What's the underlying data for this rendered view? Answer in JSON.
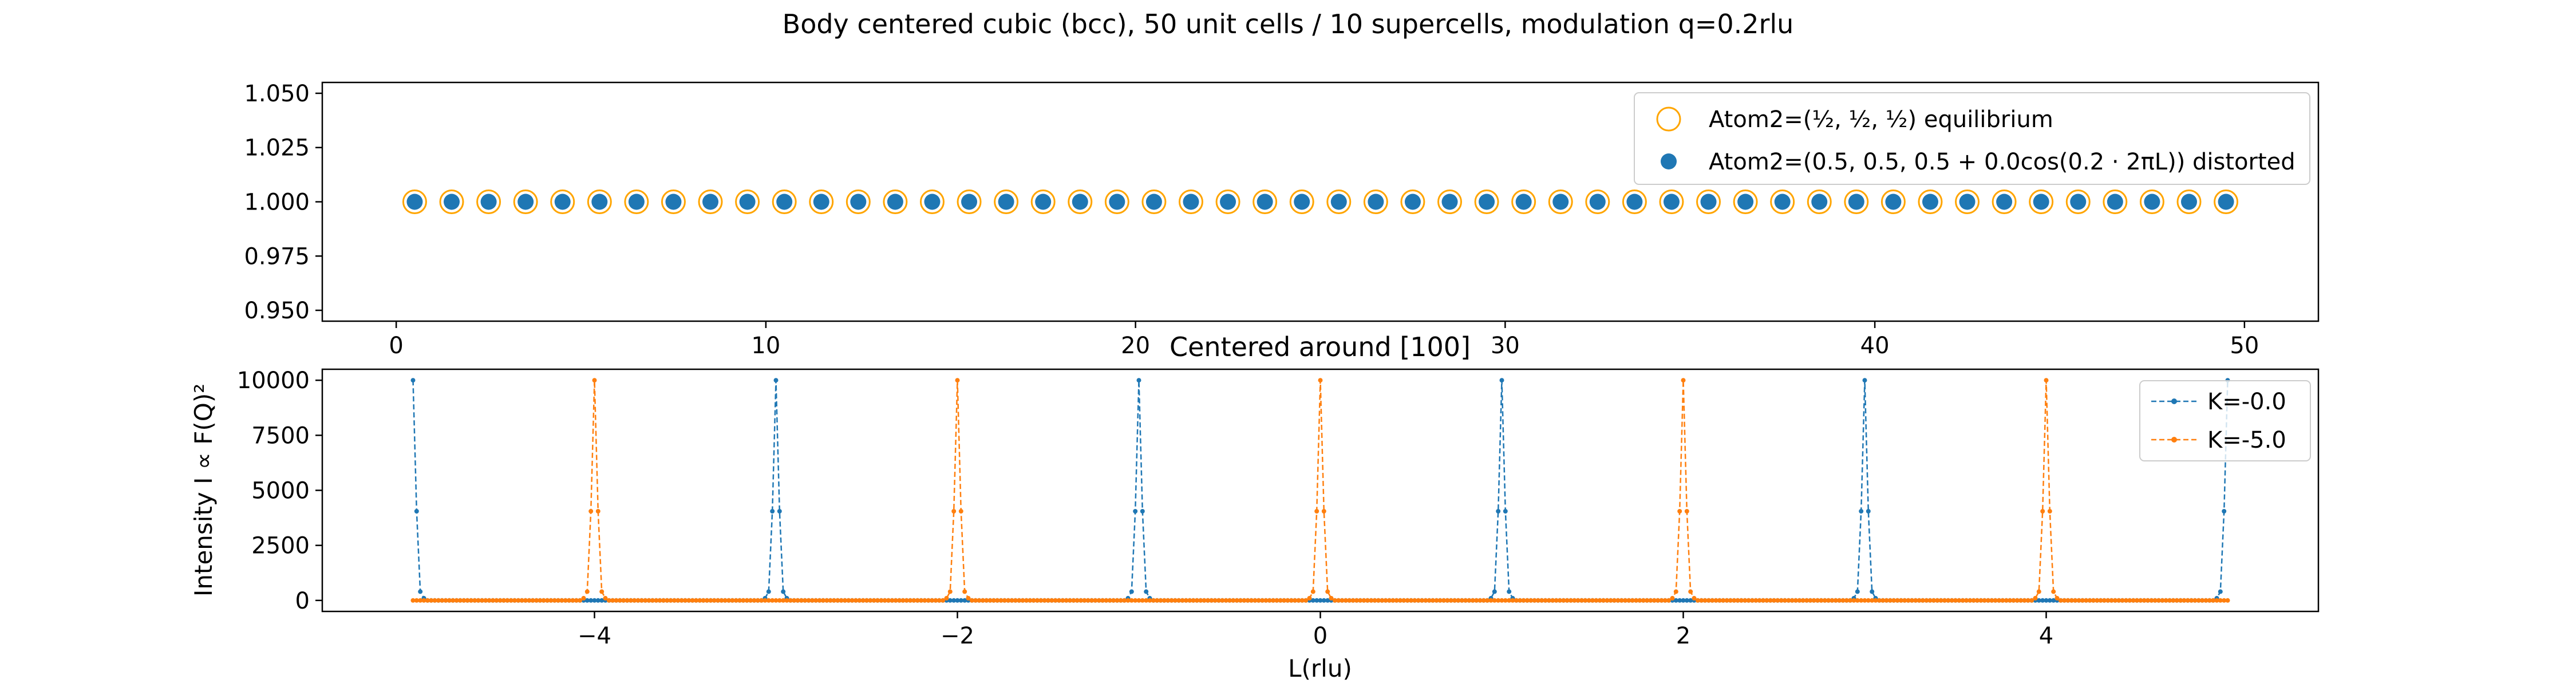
{
  "figure": {
    "suptitle": "Body centered cubic (bcc), 50 unit cells / 10 supercells, modulation q=0.2rlu"
  },
  "colors": {
    "equilibrium_edge": "#ffa500",
    "distorted_fill": "#1f77b4",
    "series_blue": "#1f77b4",
    "series_orange": "#ff7f0e"
  },
  "chart_data": [
    {
      "type": "scatter",
      "title": "",
      "xlabel": "",
      "ylabel": "",
      "xlim": [
        -2,
        52
      ],
      "ylim": [
        0.945,
        1.055
      ],
      "xticks": [
        0,
        10,
        20,
        30,
        40,
        50
      ],
      "yticks": [
        "0.950",
        "0.975",
        "1.000",
        "1.025",
        "1.050"
      ],
      "legend_position": "upper right",
      "grid": false,
      "series": [
        {
          "name": "Atom2=(½, ½, ½) equilibrium",
          "marker": "open-circle",
          "x": [
            0.5,
            1.5,
            2.5,
            3.5,
            4.5,
            5.5,
            6.5,
            7.5,
            8.5,
            9.5,
            10.5,
            11.5,
            12.5,
            13.5,
            14.5,
            15.5,
            16.5,
            17.5,
            18.5,
            19.5,
            20.5,
            21.5,
            22.5,
            23.5,
            24.5,
            25.5,
            26.5,
            27.5,
            28.5,
            29.5,
            30.5,
            31.5,
            32.5,
            33.5,
            34.5,
            35.5,
            36.5,
            37.5,
            38.5,
            39.5,
            40.5,
            41.5,
            42.5,
            43.5,
            44.5,
            45.5,
            46.5,
            47.5,
            48.5,
            49.5
          ],
          "y": 1.0
        },
        {
          "name": "Atom2=(0.5, 0.5, 0.5 + 0.0cos(0.2 · 2πL)) distorted",
          "marker": "filled-circle",
          "x": [
            0.5,
            1.5,
            2.5,
            3.5,
            4.5,
            5.5,
            6.5,
            7.5,
            8.5,
            9.5,
            10.5,
            11.5,
            12.5,
            13.5,
            14.5,
            15.5,
            16.5,
            17.5,
            18.5,
            19.5,
            20.5,
            21.5,
            22.5,
            23.5,
            24.5,
            25.5,
            26.5,
            27.5,
            28.5,
            29.5,
            30.5,
            31.5,
            32.5,
            33.5,
            34.5,
            35.5,
            36.5,
            37.5,
            38.5,
            39.5,
            40.5,
            41.5,
            42.5,
            43.5,
            44.5,
            45.5,
            46.5,
            47.5,
            48.5,
            49.5
          ],
          "y": 1.0
        }
      ]
    },
    {
      "type": "line",
      "title": "Centered around [100]",
      "xlabel": "L(rlu)",
      "ylabel": "Intensity I ∝ F(Q)²",
      "xlim": [
        -5.5,
        5.5
      ],
      "ylim": [
        -500,
        10500
      ],
      "xticks": [
        -4,
        -2,
        0,
        2,
        4
      ],
      "xtick_labels": [
        "−4",
        "−2",
        "0",
        "2",
        "4"
      ],
      "yticks": [
        0,
        2500,
        5000,
        7500,
        10000
      ],
      "legend_position": "upper right",
      "grid": false,
      "line_style": "dashed with point markers",
      "series": [
        {
          "name": "K=-0.0",
          "peak_centers": [
            -5,
            -3,
            -1,
            1,
            3,
            5
          ],
          "peak_value": 10000,
          "neighbor_offsets": [
            -0.02,
            0.02
          ],
          "neighbor_value": 4050,
          "second_offsets": [
            -0.04,
            0.04
          ],
          "second_value": 400,
          "third_offsets": [
            -0.06,
            0.06
          ],
          "third_value": 100,
          "baseline": 0,
          "sample_step": 0.02
        },
        {
          "name": "K=-5.0",
          "peak_centers": [
            -4,
            -2,
            0,
            2,
            4
          ],
          "peak_value": 10000,
          "neighbor_offsets": [
            -0.02,
            0.02
          ],
          "neighbor_value": 4050,
          "second_offsets": [
            -0.04,
            0.04
          ],
          "second_value": 400,
          "third_offsets": [
            -0.06,
            0.06
          ],
          "third_value": 100,
          "baseline": 0,
          "sample_step": 0.02
        }
      ]
    }
  ]
}
